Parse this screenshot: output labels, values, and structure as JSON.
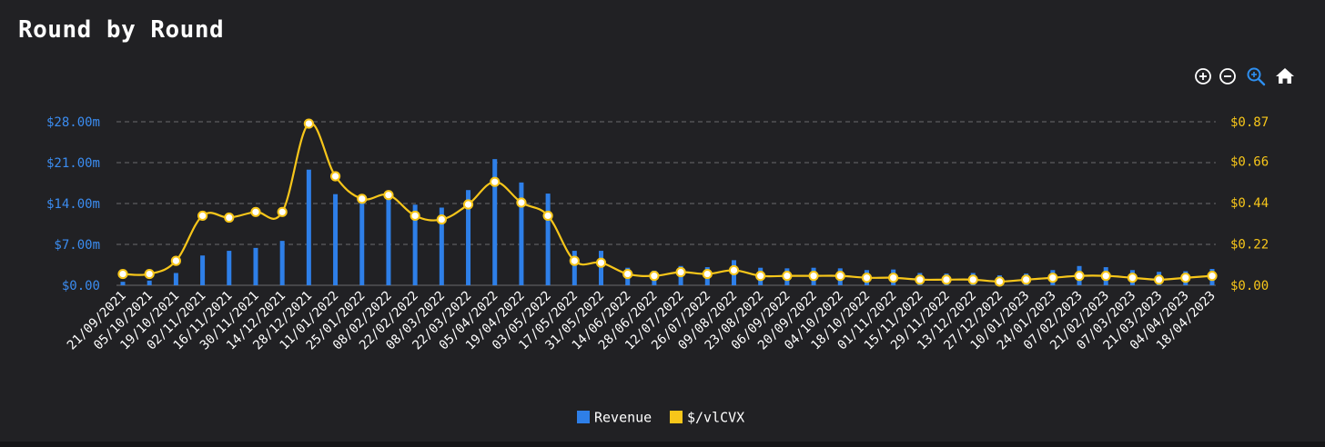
{
  "title": "Round by Round",
  "toolbar": {
    "zoom_in": "zoom-in-icon",
    "zoom_out": "zoom-out-icon",
    "zoom_select": "magnifier-icon",
    "reset": "home-icon"
  },
  "colors": {
    "background": "#212124",
    "revenue": "#2e7fe8",
    "price": "#f7c61a",
    "left_axis": "#3b8cf0",
    "right_axis": "#f7c61a",
    "grid": "#6a6a6e",
    "text": "#ffffff"
  },
  "chart_data": {
    "type": "bar",
    "categories": [
      "21/09/2021",
      "05/10/2021",
      "19/10/2021",
      "02/11/2021",
      "16/11/2021",
      "30/11/2021",
      "14/12/2021",
      "28/12/2021",
      "11/01/2022",
      "25/01/2022",
      "08/02/2022",
      "22/02/2022",
      "08/03/2022",
      "22/03/2022",
      "05/04/2022",
      "19/04/2022",
      "03/05/2022",
      "17/05/2022",
      "31/05/2022",
      "14/06/2022",
      "28/06/2022",
      "12/07/2022",
      "26/07/2022",
      "09/08/2022",
      "23/08/2022",
      "06/09/2022",
      "20/09/2022",
      "04/10/2022",
      "18/10/2022",
      "01/11/2022",
      "15/11/2022",
      "29/11/2022",
      "13/12/2022",
      "27/12/2022",
      "10/01/2023",
      "24/01/2023",
      "07/02/2023",
      "21/02/2023",
      "07/03/2023",
      "21/03/2023",
      "04/04/2023",
      "18/04/2023"
    ],
    "series": [
      {
        "name": "Revenue",
        "chart": "bar",
        "axis": "left",
        "values": [
          0.6,
          0.8,
          2.1,
          5.1,
          5.9,
          6.4,
          7.6,
          19.8,
          15.6,
          15.0,
          15.5,
          13.8,
          13.3,
          16.3,
          21.6,
          17.6,
          15.7,
          5.9,
          5.9,
          3.0,
          2.5,
          3.3,
          3.1,
          4.3,
          3.0,
          2.9,
          3.0,
          2.9,
          2.6,
          2.7,
          2.1,
          2.0,
          2.1,
          1.7,
          2.0,
          2.6,
          3.3,
          3.1,
          2.6,
          2.3,
          2.4,
          2.8
        ]
      },
      {
        "name": "$/vlCVX",
        "chart": "line",
        "axis": "right",
        "values": [
          0.06,
          0.06,
          0.13,
          0.37,
          0.36,
          0.39,
          0.39,
          0.86,
          0.58,
          0.46,
          0.48,
          0.37,
          0.35,
          0.43,
          0.55,
          0.44,
          0.37,
          0.13,
          0.12,
          0.06,
          0.05,
          0.07,
          0.06,
          0.08,
          0.05,
          0.05,
          0.05,
          0.05,
          0.04,
          0.04,
          0.03,
          0.03,
          0.03,
          0.02,
          0.03,
          0.04,
          0.05,
          0.05,
          0.04,
          0.03,
          0.04,
          0.05
        ]
      }
    ],
    "left_axis": {
      "ylim": [
        0,
        28
      ],
      "ticks": [
        "$0.00",
        "$7.00m",
        "$14.00m",
        "$21.00m",
        "$28.00m"
      ],
      "tick_values": [
        0,
        7,
        14,
        21,
        28
      ]
    },
    "right_axis": {
      "ylim": [
        0,
        0.87
      ],
      "ticks": [
        "$0.00",
        "$0.22",
        "$0.44",
        "$0.66",
        "$0.87"
      ],
      "tick_values": [
        0,
        0.22,
        0.44,
        0.66,
        0.87
      ]
    },
    "legend": {
      "position": "bottom-center",
      "items": [
        "Revenue",
        "$/vlCVX"
      ]
    },
    "grid": true
  }
}
